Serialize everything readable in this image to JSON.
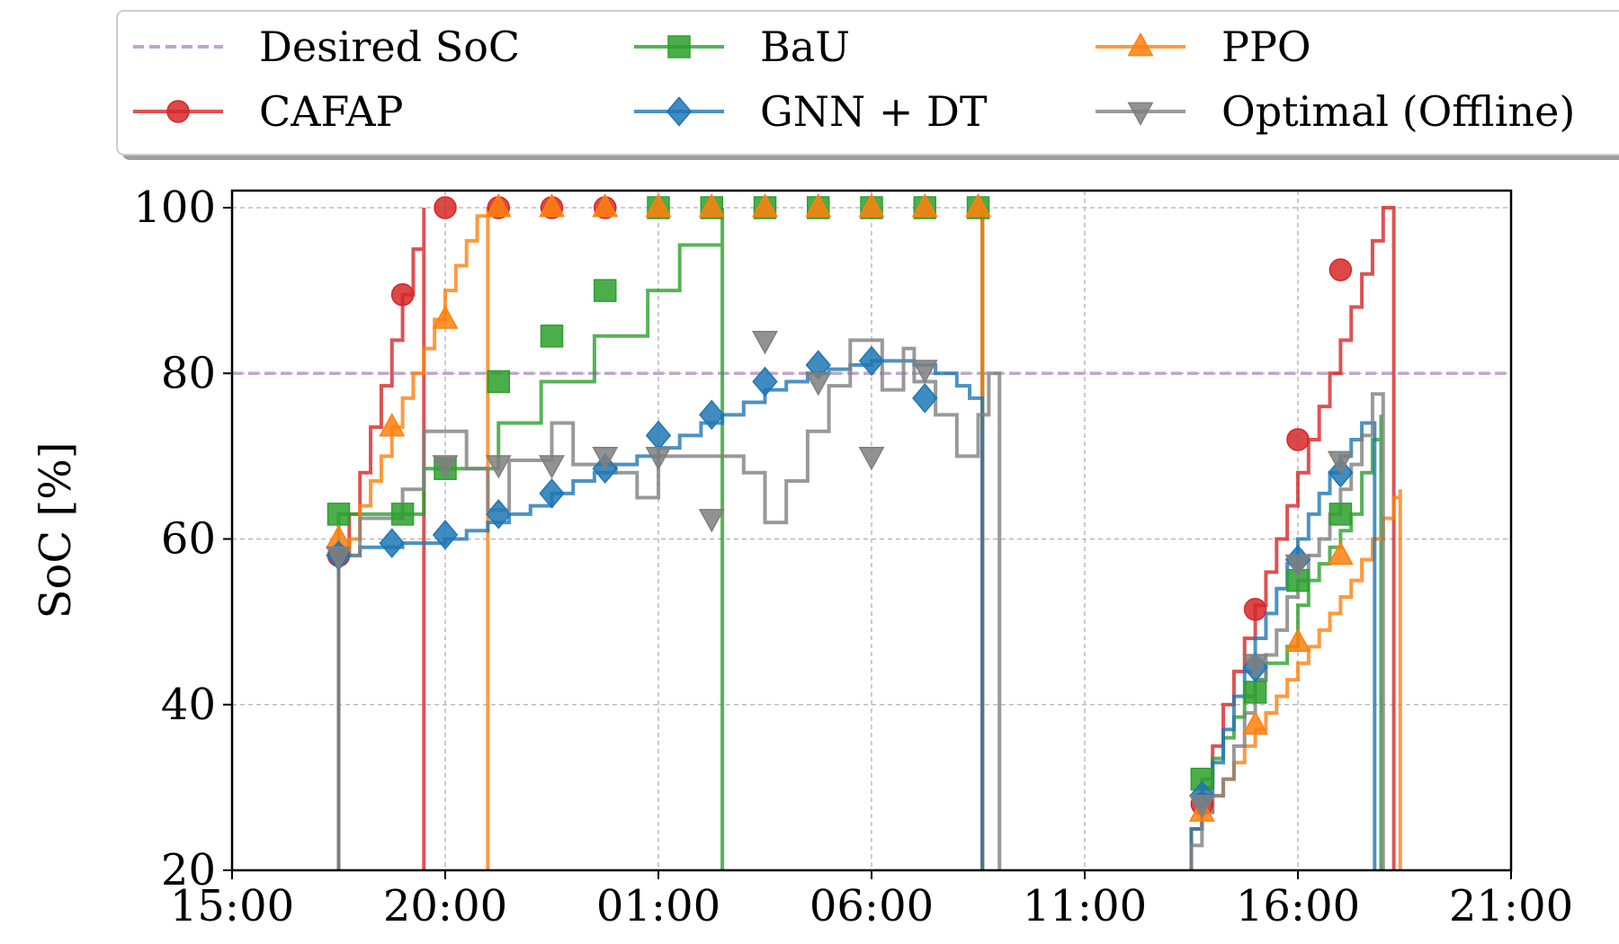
{
  "chart_data": {
    "type": "line",
    "ylabel": "SoC [%]",
    "xlabel": "",
    "y_ticks": [
      "20",
      "40",
      "60",
      "80",
      "100"
    ],
    "ylim": [
      20,
      100
    ],
    "x_ticks": [
      "15:00",
      "20:00",
      "01:00",
      "06:00",
      "11:00",
      "16:00",
      "21:00"
    ],
    "x_range_hours": [
      15,
      45
    ],
    "grid": true,
    "legend_position": "top",
    "reference_line": {
      "name": "Desired SoC",
      "value": 80,
      "color": "#c2a5cf"
    },
    "sessions": [
      {
        "start": 17.5,
        "end": 32.6
      },
      {
        "start": 37.5,
        "end": 41.8
      }
    ],
    "series": [
      {
        "name": "CAFAP",
        "color": "#d62728",
        "marker": "circle",
        "points": [
          [
            17.5,
            58
          ],
          [
            17.75,
            63
          ],
          [
            18.0,
            68
          ],
          [
            18.25,
            73.5
          ],
          [
            18.5,
            78.5
          ],
          [
            18.75,
            84
          ],
          [
            19.0,
            89.5
          ],
          [
            19.25,
            95
          ],
          [
            19.5,
            100
          ],
          [
            32.6,
            100
          ],
          [
            37.5,
            25
          ],
          [
            37.75,
            30
          ],
          [
            38.0,
            35
          ],
          [
            38.25,
            40
          ],
          [
            38.5,
            44
          ],
          [
            38.75,
            48
          ],
          [
            39.0,
            52
          ],
          [
            39.25,
            56
          ],
          [
            39.5,
            60
          ],
          [
            39.75,
            64
          ],
          [
            40.0,
            68
          ],
          [
            40.25,
            72
          ],
          [
            40.5,
            76
          ],
          [
            40.75,
            80
          ],
          [
            41.0,
            84
          ],
          [
            41.25,
            88
          ],
          [
            41.5,
            92
          ],
          [
            41.75,
            96
          ],
          [
            42.0,
            100
          ],
          [
            42.25,
            100
          ]
        ]
      },
      {
        "name": "BaU",
        "color": "#2ca02c",
        "marker": "square",
        "points": [
          [
            17.5,
            63
          ],
          [
            19.0,
            63
          ],
          [
            19.5,
            68.5
          ],
          [
            21.0,
            68.5
          ],
          [
            21.25,
            74
          ],
          [
            22.0,
            74
          ],
          [
            22.25,
            79
          ],
          [
            23.25,
            79
          ],
          [
            23.5,
            84.5
          ],
          [
            24.5,
            84.5
          ],
          [
            24.75,
            90
          ],
          [
            25.25,
            90
          ],
          [
            25.5,
            95.5
          ],
          [
            26.25,
            95.5
          ],
          [
            26.5,
            100
          ],
          [
            32.6,
            100
          ],
          [
            37.5,
            25
          ],
          [
            37.75,
            31
          ],
          [
            38.0,
            33.5
          ],
          [
            38.25,
            36
          ],
          [
            38.5,
            38.5
          ],
          [
            38.75,
            41
          ],
          [
            39.0,
            43
          ],
          [
            39.25,
            45
          ],
          [
            39.75,
            47
          ],
          [
            40.0,
            52
          ],
          [
            40.25,
            55
          ],
          [
            40.5,
            57
          ],
          [
            40.75,
            59
          ],
          [
            41.0,
            61
          ],
          [
            41.25,
            63
          ],
          [
            41.5,
            68
          ],
          [
            41.75,
            72
          ],
          [
            41.95,
            75
          ]
        ]
      },
      {
        "name": "PPO",
        "color": "#ff7f0e",
        "marker": "triangle-up",
        "points": [
          [
            17.5,
            58
          ],
          [
            17.75,
            60
          ],
          [
            18.0,
            64
          ],
          [
            18.25,
            67
          ],
          [
            18.5,
            70
          ],
          [
            18.75,
            73.5
          ],
          [
            19.0,
            77
          ],
          [
            19.25,
            80
          ],
          [
            19.5,
            83
          ],
          [
            19.75,
            86.5
          ],
          [
            20.0,
            90
          ],
          [
            20.25,
            93
          ],
          [
            20.5,
            96
          ],
          [
            20.75,
            99
          ],
          [
            21.0,
            100
          ],
          [
            32.6,
            100
          ],
          [
            37.5,
            25
          ],
          [
            37.75,
            27
          ],
          [
            38.0,
            29
          ],
          [
            38.25,
            31
          ],
          [
            38.5,
            33
          ],
          [
            38.75,
            35
          ],
          [
            39.0,
            37
          ],
          [
            39.25,
            39
          ],
          [
            39.5,
            41
          ],
          [
            39.75,
            43
          ],
          [
            40.0,
            45
          ],
          [
            40.25,
            47
          ],
          [
            40.5,
            49
          ],
          [
            40.75,
            51
          ],
          [
            41.0,
            53
          ],
          [
            41.25,
            55
          ],
          [
            41.5,
            57.5
          ],
          [
            41.75,
            60
          ],
          [
            42.0,
            62.5
          ],
          [
            42.25,
            65
          ],
          [
            42.4,
            66
          ]
        ]
      },
      {
        "name": "GNN + DT",
        "color": "#1f77b4",
        "marker": "diamond",
        "points": [
          [
            17.5,
            58
          ],
          [
            18.0,
            59
          ],
          [
            19.0,
            59.5
          ],
          [
            20.0,
            60
          ],
          [
            20.5,
            61
          ],
          [
            21.0,
            62
          ],
          [
            21.5,
            63
          ],
          [
            22.0,
            64
          ],
          [
            22.5,
            65.5
          ],
          [
            23.0,
            67
          ],
          [
            23.5,
            68
          ],
          [
            24.0,
            69
          ],
          [
            24.5,
            70
          ],
          [
            25.0,
            71
          ],
          [
            25.5,
            72.5
          ],
          [
            26.0,
            74
          ],
          [
            26.5,
            75
          ],
          [
            27.0,
            76.5
          ],
          [
            27.5,
            78
          ],
          [
            28.0,
            79
          ],
          [
            28.5,
            80
          ],
          [
            29.0,
            80.5
          ],
          [
            29.5,
            81
          ],
          [
            30.0,
            81.5
          ],
          [
            30.5,
            81.5
          ],
          [
            31.0,
            81
          ],
          [
            31.5,
            80
          ],
          [
            32.0,
            78.5
          ],
          [
            32.3,
            77
          ],
          [
            32.6,
            77
          ],
          [
            37.5,
            25
          ],
          [
            37.75,
            29
          ],
          [
            38.0,
            33
          ],
          [
            38.25,
            37
          ],
          [
            38.5,
            41
          ],
          [
            38.75,
            44
          ],
          [
            39.0,
            48
          ],
          [
            39.25,
            51
          ],
          [
            39.5,
            54
          ],
          [
            39.75,
            57
          ],
          [
            40.0,
            60
          ],
          [
            40.25,
            63
          ],
          [
            40.5,
            65.5
          ],
          [
            40.75,
            68
          ],
          [
            41.0,
            70
          ],
          [
            41.25,
            72
          ],
          [
            41.5,
            74
          ],
          [
            41.8,
            74
          ]
        ]
      },
      {
        "name": "Optimal (Offline)",
        "color": "#7f7f7f",
        "marker": "triangle-down",
        "points": [
          [
            17.5,
            58
          ],
          [
            18.0,
            62.5
          ],
          [
            18.5,
            62.5
          ],
          [
            19.0,
            66
          ],
          [
            19.5,
            73
          ],
          [
            20.0,
            73
          ],
          [
            20.5,
            68.5
          ],
          [
            21.0,
            63.5
          ],
          [
            21.5,
            69.5
          ],
          [
            22.0,
            69.5
          ],
          [
            22.5,
            74
          ],
          [
            23.0,
            69
          ],
          [
            23.5,
            69
          ],
          [
            24.0,
            68
          ],
          [
            24.5,
            65
          ],
          [
            25.0,
            70
          ],
          [
            25.5,
            70
          ],
          [
            26.0,
            70
          ],
          [
            26.5,
            70
          ],
          [
            27.0,
            68
          ],
          [
            27.5,
            62
          ],
          [
            28.0,
            67
          ],
          [
            28.5,
            73
          ],
          [
            29.0,
            78.5
          ],
          [
            29.5,
            84
          ],
          [
            30.0,
            84
          ],
          [
            30.25,
            78
          ],
          [
            30.75,
            83
          ],
          [
            31.0,
            79
          ],
          [
            31.5,
            75
          ],
          [
            32.0,
            70
          ],
          [
            32.5,
            75
          ],
          [
            32.75,
            80
          ],
          [
            33.0,
            80
          ],
          [
            37.5,
            23
          ],
          [
            37.75,
            27
          ],
          [
            38.0,
            29
          ],
          [
            38.25,
            31
          ],
          [
            38.5,
            35
          ],
          [
            38.75,
            39
          ],
          [
            39.0,
            43
          ],
          [
            39.25,
            46
          ],
          [
            39.5,
            49
          ],
          [
            39.75,
            53
          ],
          [
            40.0,
            55
          ],
          [
            40.25,
            58
          ],
          [
            40.5,
            60
          ],
          [
            40.75,
            63
          ],
          [
            41.0,
            66
          ],
          [
            41.25,
            69
          ],
          [
            41.5,
            72.5
          ],
          [
            41.75,
            77.5
          ],
          [
            42.0,
            77.5
          ]
        ]
      }
    ],
    "markers": {
      "CAFAP": [
        [
          17.5,
          58
        ],
        [
          19.0,
          89.5
        ],
        [
          20.0,
          100
        ],
        [
          21.25,
          100
        ],
        [
          22.5,
          100
        ],
        [
          23.75,
          100
        ],
        [
          37.75,
          28
        ],
        [
          39.0,
          51.5
        ],
        [
          40.0,
          72
        ],
        [
          41.0,
          92.5
        ]
      ],
      "BaU": [
        [
          17.5,
          63
        ],
        [
          19.0,
          63
        ],
        [
          20.0,
          68.5
        ],
        [
          21.25,
          79
        ],
        [
          22.5,
          84.5
        ],
        [
          23.75,
          90
        ],
        [
          25.0,
          100
        ],
        [
          26.25,
          100
        ],
        [
          27.5,
          100
        ],
        [
          28.75,
          100
        ],
        [
          30.0,
          100
        ],
        [
          31.25,
          100
        ],
        [
          32.5,
          100
        ],
        [
          37.75,
          31
        ],
        [
          39.0,
          41.5
        ],
        [
          40.0,
          55
        ],
        [
          41.0,
          63
        ]
      ],
      "PPO": [
        [
          17.5,
          60
        ],
        [
          18.75,
          73.5
        ],
        [
          20.0,
          86.5
        ],
        [
          21.25,
          100
        ],
        [
          22.5,
          100
        ],
        [
          23.75,
          100
        ],
        [
          25.0,
          100
        ],
        [
          26.25,
          100
        ],
        [
          27.5,
          100
        ],
        [
          28.75,
          100
        ],
        [
          30.0,
          100
        ],
        [
          31.25,
          100
        ],
        [
          32.5,
          100
        ],
        [
          37.75,
          27
        ],
        [
          39.0,
          37.5
        ],
        [
          40.0,
          47.5
        ],
        [
          41.0,
          58
        ]
      ],
      "GNN + DT": [
        [
          17.5,
          58
        ],
        [
          18.75,
          59.5
        ],
        [
          20.0,
          60.5
        ],
        [
          21.25,
          63
        ],
        [
          22.5,
          65.5
        ],
        [
          23.75,
          68.5
        ],
        [
          25.0,
          72.5
        ],
        [
          26.25,
          75
        ],
        [
          27.5,
          79
        ],
        [
          28.75,
          81
        ],
        [
          30.0,
          81.5
        ],
        [
          31.25,
          77
        ],
        [
          37.75,
          29
        ],
        [
          39.0,
          44.5
        ],
        [
          40.0,
          57.5
        ],
        [
          41.0,
          68
        ]
      ],
      "Optimal (Offline)": [
        [
          17.5,
          58
        ],
        [
          20.0,
          69
        ],
        [
          21.25,
          69
        ],
        [
          22.5,
          69
        ],
        [
          23.75,
          70
        ],
        [
          25.0,
          70
        ],
        [
          26.25,
          62.5
        ],
        [
          27.5,
          84
        ],
        [
          28.75,
          79
        ],
        [
          30.0,
          70
        ],
        [
          31.25,
          80.5
        ],
        [
          37.75,
          28
        ],
        [
          39.0,
          45
        ],
        [
          40.0,
          57
        ],
        [
          41.0,
          69.5
        ]
      ]
    }
  }
}
